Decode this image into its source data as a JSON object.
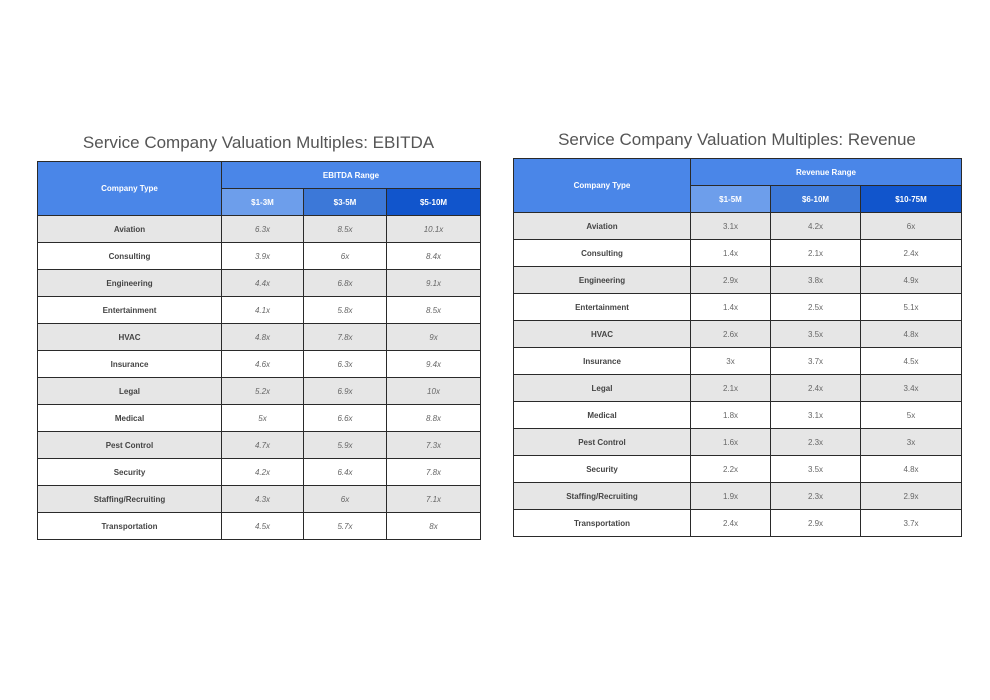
{
  "chart_data": [
    {
      "type": "table",
      "title": "Service Company Valuation Multiples: EBITDA",
      "headers": {
        "type_col": "Company Type",
        "range_label": "EBITDA Range"
      },
      "columns": [
        "$1-3M",
        "$3-5M",
        "$5-10M"
      ],
      "rows": [
        {
          "company": "Aviation",
          "values": [
            "6.3x",
            "8.5x",
            "10.1x"
          ]
        },
        {
          "company": "Consulting",
          "values": [
            "3.9x",
            "6x",
            "8.4x"
          ]
        },
        {
          "company": "Engineering",
          "values": [
            "4.4x",
            "6.8x",
            "9.1x"
          ]
        },
        {
          "company": "Entertainment",
          "values": [
            "4.1x",
            "5.8x",
            "8.5x"
          ]
        },
        {
          "company": "HVAC",
          "values": [
            "4.8x",
            "7.8x",
            "9x"
          ]
        },
        {
          "company": "Insurance",
          "values": [
            "4.6x",
            "6.3x",
            "9.4x"
          ]
        },
        {
          "company": "Legal",
          "values": [
            "5.2x",
            "6.9x",
            "10x"
          ]
        },
        {
          "company": "Medical",
          "values": [
            "5x",
            "6.6x",
            "8.8x"
          ]
        },
        {
          "company": "Pest Control",
          "values": [
            "4.7x",
            "5.9x",
            "7.3x"
          ]
        },
        {
          "company": "Security",
          "values": [
            "4.2x",
            "6.4x",
            "7.8x"
          ]
        },
        {
          "company": "Staffing/Recruiting",
          "values": [
            "4.3x",
            "6x",
            "7.1x"
          ]
        },
        {
          "company": "Transportation",
          "values": [
            "4.5x",
            "5.7x",
            "8x"
          ]
        }
      ]
    },
    {
      "type": "table",
      "title": "Service Company Valuation Multiples: Revenue",
      "headers": {
        "type_col": "Company Type",
        "range_label": "Revenue Range"
      },
      "columns": [
        "$1-5M",
        "$6-10M",
        "$10-75M"
      ],
      "rows": [
        {
          "company": "Aviation",
          "values": [
            "3.1x",
            "4.2x",
            "6x"
          ]
        },
        {
          "company": "Consulting",
          "values": [
            "1.4x",
            "2.1x",
            "2.4x"
          ]
        },
        {
          "company": "Engineering",
          "values": [
            "2.9x",
            "3.8x",
            "4.9x"
          ]
        },
        {
          "company": "Entertainment",
          "values": [
            "1.4x",
            "2.5x",
            "5.1x"
          ]
        },
        {
          "company": "HVAC",
          "values": [
            "2.6x",
            "3.5x",
            "4.8x"
          ]
        },
        {
          "company": "Insurance",
          "values": [
            "3x",
            "3.7x",
            "4.5x"
          ]
        },
        {
          "company": "Legal",
          "values": [
            "2.1x",
            "2.4x",
            "3.4x"
          ]
        },
        {
          "company": "Medical",
          "values": [
            "1.8x",
            "3.1x",
            "5x"
          ]
        },
        {
          "company": "Pest Control",
          "values": [
            "1.6x",
            "2.3x",
            "3x"
          ]
        },
        {
          "company": "Security",
          "values": [
            "2.2x",
            "3.5x",
            "4.8x"
          ]
        },
        {
          "company": "Staffing/Recruiting",
          "values": [
            "1.9x",
            "2.3x",
            "2.9x"
          ]
        },
        {
          "company": "Transportation",
          "values": [
            "2.4x",
            "2.9x",
            "3.7x"
          ]
        }
      ]
    }
  ]
}
